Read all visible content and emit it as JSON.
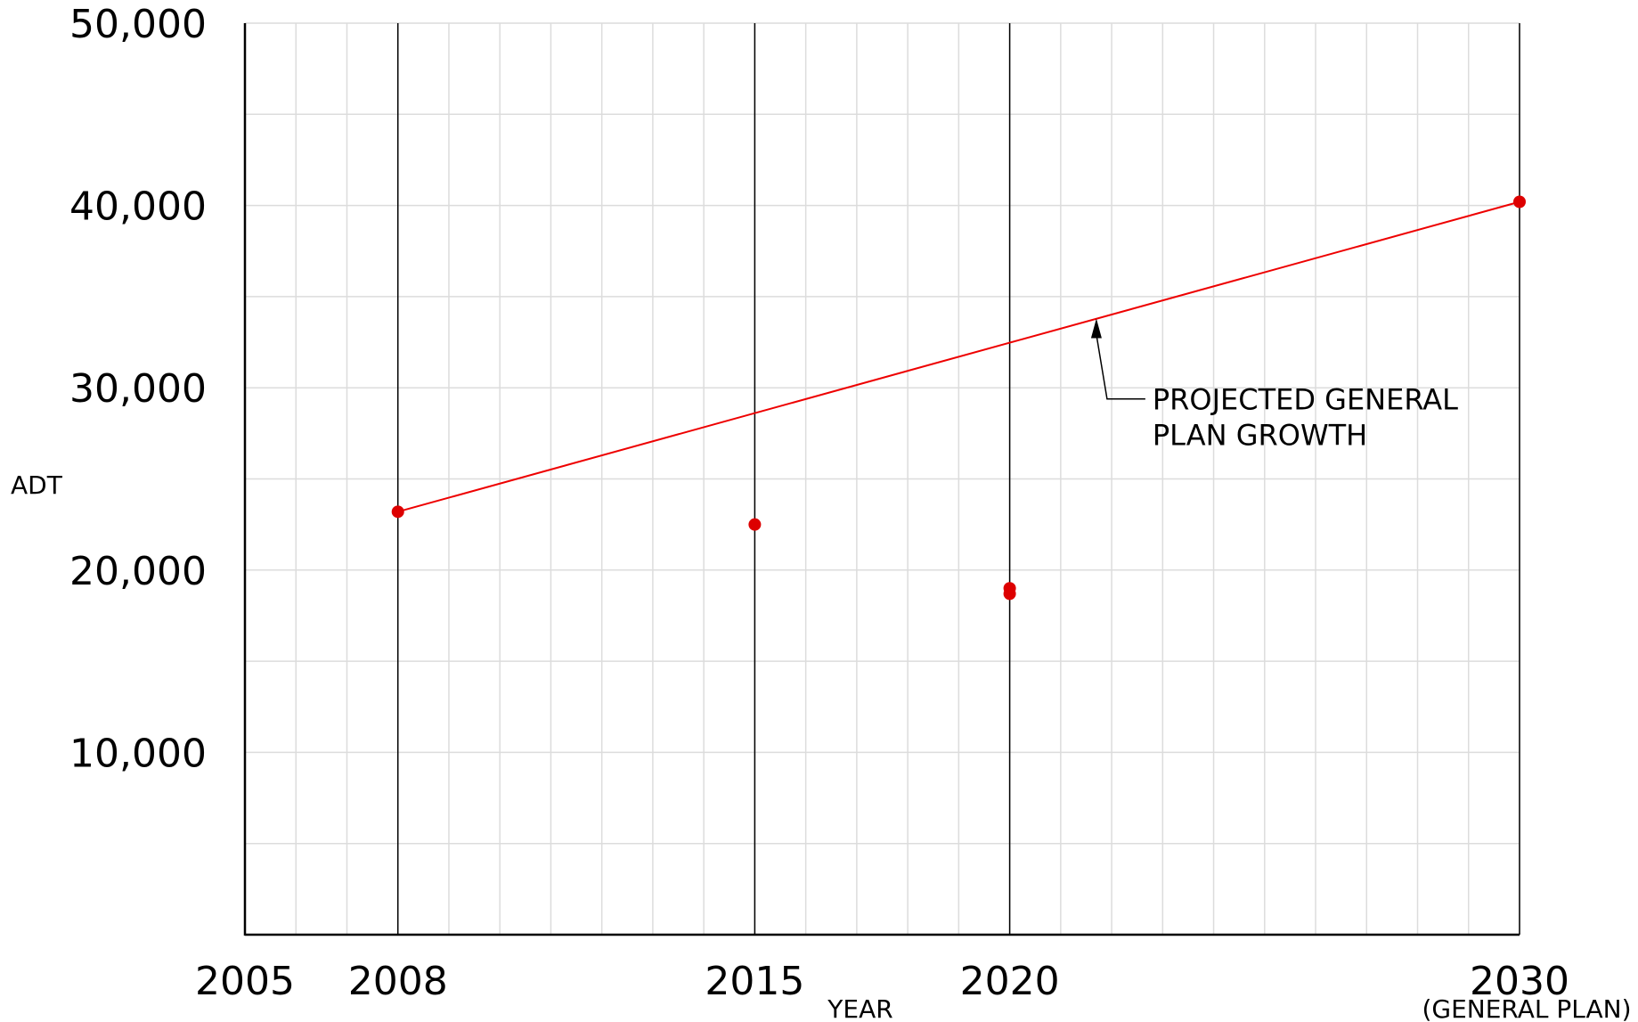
{
  "chart_data": {
    "type": "line",
    "xlabel": "YEAR",
    "ylabel": "ADT",
    "xlim": [
      2005,
      2030
    ],
    "ylim": [
      0,
      50000
    ],
    "x_ticks": [
      {
        "value": 2005,
        "label": "2005"
      },
      {
        "value": 2008,
        "label": "2008"
      },
      {
        "value": 2015,
        "label": "2015"
      },
      {
        "value": 2020,
        "label": "2020"
      },
      {
        "value": 2030,
        "label": "2030"
      }
    ],
    "x_tick_note": "(GENERAL PLAN)",
    "y_ticks": [
      {
        "value": 10000,
        "label": "10,000"
      },
      {
        "value": 20000,
        "label": "20,000"
      },
      {
        "value": 30000,
        "label": "30,000"
      },
      {
        "value": 40000,
        "label": "40,000"
      },
      {
        "value": 50000,
        "label": "50,000"
      }
    ],
    "grid": true,
    "grid_x_step": 1,
    "grid_y_step": 5000,
    "reference_lines_x": [
      2008,
      2015,
      2020,
      2030
    ],
    "line_color": "#ee0000",
    "point_color": "#dd0000",
    "series": [
      {
        "kind": "line",
        "x": [
          2008,
          2030
        ],
        "y": [
          23200,
          40200
        ]
      },
      {
        "kind": "points",
        "x": [
          2008,
          2015,
          2020,
          2020,
          2030
        ],
        "y": [
          23200,
          22500,
          19000,
          18700,
          40200
        ]
      }
    ],
    "annotations": [
      {
        "lines": [
          "PROJECTED GENERAL",
          "PLAN GROWTH"
        ],
        "target_x": 2021.7,
        "target_y": 33800,
        "text_x": 2022.8,
        "text_y": 28900
      }
    ]
  }
}
